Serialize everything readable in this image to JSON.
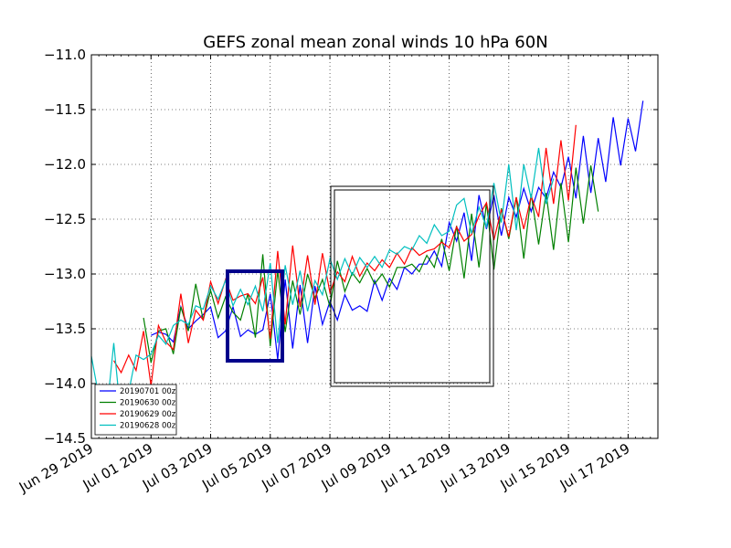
{
  "chart_data": {
    "type": "line",
    "title": "GEFS zonal mean zonal winds 10 hPa 60N",
    "xlabel": "",
    "ylabel": "",
    "x_range": [
      "2019-06-29T00:00",
      "2019-07-18T00:00"
    ],
    "ylim": [
      -14.5,
      -11.0
    ],
    "yticks": [
      -14.5,
      -14.0,
      -13.5,
      -13.0,
      -12.5,
      -12.0,
      -11.5,
      -11.0
    ],
    "ytick_labels": [
      "−14.5",
      "−14.0",
      "−13.5",
      "−13.0",
      "−12.5",
      "−12.0",
      "−11.5",
      "−11.0"
    ],
    "xtick_labels": [
      "Jun 29 2019",
      "Jul 01 2019",
      "Jul 03 2019",
      "Jul 05 2019",
      "Jul 07 2019",
      "Jul 09 2019",
      "Jul 11 2019",
      "Jul 13 2019",
      "Jul 15 2019",
      "Jul 17 2019"
    ],
    "grid": true,
    "legend_position": "lower-left",
    "series": [
      {
        "name": "20190701 00z",
        "color": "#0000ff",
        "start": "2019-07-01T00:00",
        "values": [
          -13.56,
          -13.53,
          -13.55,
          -13.62,
          -13.3,
          -13.5,
          -13.43,
          -13.37,
          -13.3,
          -13.58,
          -13.52,
          -13.3,
          -13.57,
          -13.51,
          -13.55,
          -13.51,
          -13.18,
          -13.78,
          -13.05,
          -13.68,
          -13.1,
          -13.63,
          -13.11,
          -13.46,
          -13.25,
          -13.42,
          -13.19,
          -13.33,
          -13.29,
          -13.34,
          -13.06,
          -13.24,
          -13.04,
          -13.14,
          -12.94,
          -13.0,
          -12.91,
          -12.91,
          -12.79,
          -12.93,
          -12.53,
          -12.7,
          -12.44,
          -12.88,
          -12.28,
          -12.59,
          -12.28,
          -12.65,
          -12.3,
          -12.48,
          -12.22,
          -12.43,
          -12.21,
          -12.31,
          -12.07,
          -12.21,
          -11.93,
          -12.31,
          -11.74,
          -12.26,
          -11.76,
          -12.16,
          -11.57,
          -12.01,
          -11.58,
          -11.88,
          -11.42
        ]
      },
      {
        "name": "20190630 00z",
        "color": "#008000",
        "start": "2019-06-30T18:00",
        "values": [
          -13.4,
          -13.81,
          -13.52,
          -13.5,
          -13.73,
          -13.3,
          -13.52,
          -13.09,
          -13.42,
          -13.15,
          -13.4,
          -13.21,
          -13.35,
          -13.42,
          -13.18,
          -13.58,
          -12.82,
          -13.66,
          -12.97,
          -13.53,
          -13.06,
          -13.37,
          -13.0,
          -13.22,
          -13.05,
          -13.3,
          -12.88,
          -13.16,
          -12.99,
          -13.08,
          -12.95,
          -13.09,
          -13.0,
          -13.12,
          -12.94,
          -12.94,
          -12.91,
          -12.98,
          -12.83,
          -12.94,
          -12.68,
          -12.97,
          -12.56,
          -13.04,
          -12.45,
          -12.94,
          -12.35,
          -12.96,
          -12.4,
          -12.68,
          -12.3,
          -12.86,
          -12.27,
          -12.73,
          -12.26,
          -12.78,
          -12.17,
          -12.71,
          -12.03,
          -12.54,
          -12.01,
          -12.43
        ]
      },
      {
        "name": "20190629 00z",
        "color": "#ff0000",
        "start": "2019-06-29T18:00",
        "values": [
          -13.79,
          -13.9,
          -13.74,
          -13.88,
          -13.52,
          -14.02,
          -13.47,
          -13.62,
          -13.69,
          -13.18,
          -13.63,
          -13.33,
          -13.42,
          -13.07,
          -13.27,
          -13.05,
          -13.24,
          -13.2,
          -13.18,
          -13.27,
          -13.03,
          -13.59,
          -12.79,
          -13.46,
          -12.74,
          -13.3,
          -12.83,
          -13.28,
          -12.81,
          -13.17,
          -12.98,
          -13.07,
          -12.84,
          -13.02,
          -12.9,
          -12.97,
          -12.87,
          -12.94,
          -12.81,
          -12.91,
          -12.76,
          -12.83,
          -12.79,
          -12.77,
          -12.71,
          -12.76,
          -12.57,
          -12.7,
          -12.64,
          -12.47,
          -12.35,
          -12.69,
          -12.41,
          -12.66,
          -12.3,
          -12.59,
          -12.29,
          -12.48,
          -11.85,
          -12.36,
          -11.78,
          -12.33,
          -11.64
        ]
      },
      {
        "name": "20190628 00z",
        "color": "#00bfbf",
        "start": "2019-06-29T00:00",
        "values": [
          -13.75,
          -14.12,
          -14.3,
          -13.63,
          -14.33,
          -14.08,
          -13.74,
          -13.78,
          -13.73,
          -13.56,
          -13.64,
          -13.47,
          -13.42,
          -13.46,
          -13.29,
          -13.32,
          -13.11,
          -13.23,
          -13.06,
          -13.29,
          -13.14,
          -13.28,
          -13.11,
          -13.34,
          -12.9,
          -13.63,
          -12.92,
          -13.28,
          -12.97,
          -13.34,
          -13.06,
          -13.19,
          -12.86,
          -13.05,
          -12.86,
          -13.01,
          -12.85,
          -12.94,
          -12.84,
          -12.94,
          -12.78,
          -12.82,
          -12.75,
          -12.78,
          -12.65,
          -12.72,
          -12.55,
          -12.65,
          -12.61,
          -12.37,
          -12.31,
          -12.63,
          -12.39,
          -12.57,
          -12.17,
          -12.53,
          -12.0,
          -12.6,
          -12.0,
          -12.31,
          -11.85,
          -12.36,
          -12.13
        ]
      }
    ]
  }
}
